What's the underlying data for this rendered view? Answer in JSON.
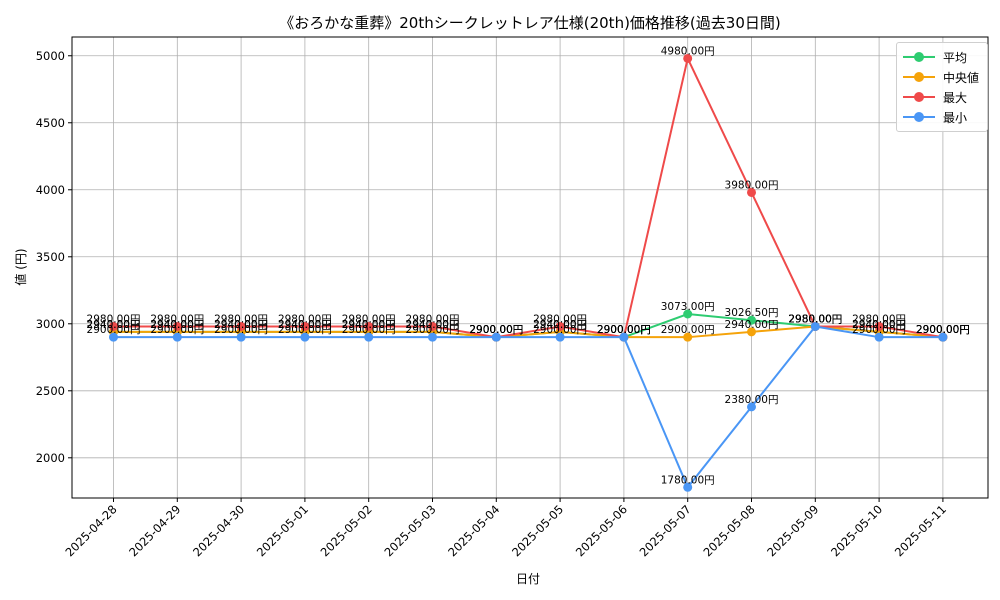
{
  "chart_data": {
    "type": "line",
    "title": "《おろかな重葬》20thシークレットレア仕様(20th)価格推移(過去30日間)",
    "xlabel": "日付",
    "ylabel": "値 (円)",
    "categories": [
      "2025-04-28",
      "2025-04-29",
      "2025-04-30",
      "2025-05-01",
      "2025-05-02",
      "2025-05-03",
      "2025-05-04",
      "2025-05-05",
      "2025-05-06",
      "2025-05-07",
      "2025-05-08",
      "2025-05-09",
      "2025-05-10",
      "2025-05-11"
    ],
    "ylim": [
      1700,
      5140
    ],
    "yticks": [
      2000,
      2500,
      3000,
      3500,
      4000,
      4500,
      5000
    ],
    "grid": true,
    "legend_position": "top-right",
    "label_suffix": "円",
    "series": [
      {
        "name": "平均",
        "color": "#2ecc71",
        "values": [
          2940.0,
          2940.0,
          2940.0,
          2940.0,
          2940.0,
          2940.0,
          2900.0,
          2940.0,
          2900.0,
          3073.0,
          3026.5,
          2980.0,
          2940.0,
          2900.0
        ]
      },
      {
        "name": "中央値",
        "color": "#f5a30a",
        "values": [
          2940.0,
          2940.0,
          2940.0,
          2940.0,
          2940.0,
          2940.0,
          2900.0,
          2940.0,
          2900.0,
          2900.0,
          2940.0,
          2980.0,
          2940.0,
          2900.0
        ]
      },
      {
        "name": "最大",
        "color": "#ef4a4a",
        "values": [
          2980.0,
          2980.0,
          2980.0,
          2980.0,
          2980.0,
          2980.0,
          2900.0,
          2980.0,
          2900.0,
          4980.0,
          3980.0,
          2980.0,
          2980.0,
          2900.0
        ]
      },
      {
        "name": "最小",
        "color": "#4a96f5",
        "values": [
          2900.0,
          2900.0,
          2900.0,
          2900.0,
          2900.0,
          2900.0,
          2900.0,
          2900.0,
          2900.0,
          1780.0,
          2380.0,
          2980.0,
          2900.0,
          2900.0
        ]
      }
    ]
  }
}
